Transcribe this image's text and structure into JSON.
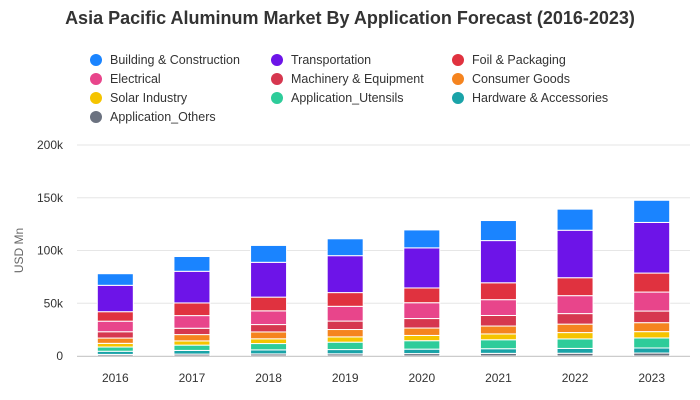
{
  "chart_data": {
    "type": "bar",
    "stacked": true,
    "title": "Asia Pacific Aluminum Market By Application Forecast (2016-2023)",
    "ylabel": "USD Mn",
    "xlabel": "",
    "ylim": [
      0,
      200000
    ],
    "y_ticks": [
      {
        "value": 0,
        "label": "0"
      },
      {
        "value": 50000,
        "label": "50k"
      },
      {
        "value": 100000,
        "label": "100k"
      },
      {
        "value": 150000,
        "label": "150k"
      },
      {
        "value": 200000,
        "label": "200k"
      }
    ],
    "grid": true,
    "legend_position": "top",
    "categories": [
      "2016",
      "2017",
      "2018",
      "2019",
      "2020",
      "2021",
      "2022",
      "2023"
    ],
    "series": [
      {
        "name": "Application_Others",
        "color": "#6b7280",
        "values": [
          1500,
          1800,
          2000,
          2100,
          2300,
          2500,
          2600,
          2800
        ]
      },
      {
        "name": "Hardware & Accessories",
        "color": "#1aa3a8",
        "values": [
          3000,
          3500,
          3800,
          4000,
          4200,
          4400,
          4600,
          4800
        ]
      },
      {
        "name": "Application_Utensils",
        "color": "#2ecc9a",
        "values": [
          4000,
          5000,
          6000,
          7000,
          8000,
          8500,
          9000,
          9500
        ]
      },
      {
        "name": "Solar Industry",
        "color": "#f5c400",
        "values": [
          3500,
          4000,
          4500,
          5000,
          5000,
          5500,
          6000,
          6000
        ]
      },
      {
        "name": "Consumer Goods",
        "color": "#f5841f",
        "values": [
          5000,
          6000,
          6500,
          7000,
          7000,
          7500,
          8000,
          8500
        ]
      },
      {
        "name": "Machinery & Equipment",
        "color": "#d6374f",
        "values": [
          6000,
          6000,
          7000,
          8000,
          9000,
          10000,
          10000,
          11000
        ]
      },
      {
        "name": "Electrical",
        "color": "#e8458b",
        "values": [
          10000,
          12000,
          13000,
          14000,
          15000,
          15000,
          17000,
          18000
        ]
      },
      {
        "name": "Foil & Packaging",
        "color": "#e0323f",
        "values": [
          9000,
          12000,
          13000,
          13000,
          14000,
          16000,
          17000,
          18000
        ]
      },
      {
        "name": "Transportation",
        "color": "#6d14e8",
        "values": [
          25000,
          30000,
          33000,
          35000,
          38000,
          40000,
          45000,
          48000
        ]
      },
      {
        "name": "Building & Construction",
        "color": "#1a84ff",
        "values": [
          11000,
          14000,
          16000,
          16000,
          17000,
          19000,
          20000,
          21000
        ]
      }
    ],
    "legend_order": [
      "Building & Construction",
      "Transportation",
      "Foil & Packaging",
      "Electrical",
      "Machinery & Equipment",
      "Consumer Goods",
      "Solar Industry",
      "Application_Utensils",
      "Hardware & Accessories",
      "Application_Others"
    ]
  }
}
